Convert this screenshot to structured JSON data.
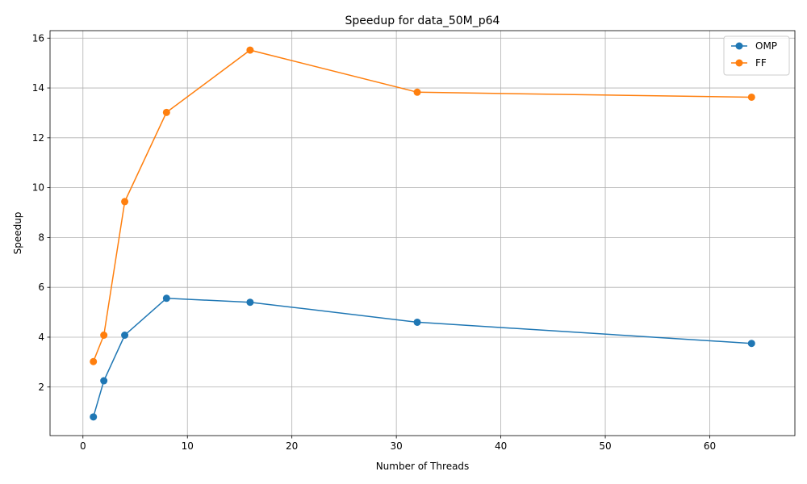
{
  "chart_data": {
    "type": "line",
    "title": "Speedup for data_50M_p64",
    "xlabel": "Number of Threads",
    "ylabel": "Speedup",
    "xlim": [
      -3.15,
      68.15
    ],
    "ylim": [
      0.05,
      16.3
    ],
    "xticks": [
      0,
      10,
      20,
      30,
      40,
      50,
      60
    ],
    "yticks": [
      2,
      4,
      6,
      8,
      10,
      12,
      14,
      16
    ],
    "grid": true,
    "legend_position": "top-right",
    "x": [
      1,
      2,
      4,
      8,
      16,
      32,
      64
    ],
    "series": [
      {
        "name": "OMP",
        "color": "#1f77b4",
        "values": [
          0.8,
          2.25,
          4.08,
          5.56,
          5.4,
          4.6,
          3.75
        ]
      },
      {
        "name": "FF",
        "color": "#ff7f0e",
        "values": [
          3.02,
          4.08,
          9.44,
          13.02,
          15.52,
          13.83,
          13.63
        ]
      }
    ]
  }
}
